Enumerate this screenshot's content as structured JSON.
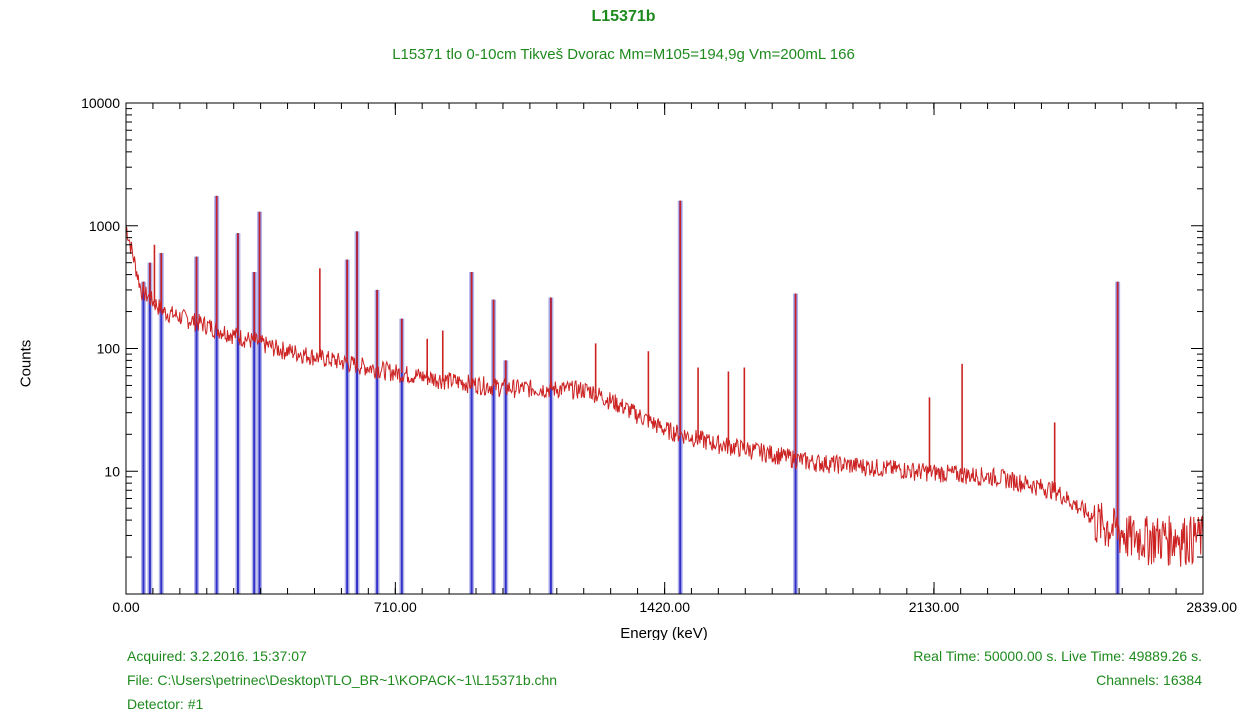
{
  "chart_data": {
    "type": "line",
    "title": "L15371b",
    "subtitle": "L15371 tlo 0-10cm Tikveš Dvorac  Mm=M105=194,9g Vm=200mL 166",
    "xlabel": "Energy (keV)",
    "ylabel": "Counts",
    "xlim": [
      0,
      2839
    ],
    "ylim": [
      1,
      10000
    ],
    "yscale": "log",
    "x_ticks": [
      "0.00",
      "710.00",
      "1420.00",
      "2130.00",
      "2839.00"
    ],
    "x_tick_values": [
      0,
      710,
      1420,
      2130,
      2839
    ],
    "y_ticks": [
      "10000",
      "1000",
      "100",
      "10"
    ],
    "y_tick_values": [
      10000,
      1000,
      100,
      10
    ],
    "spectrum_color": "#cc2222",
    "peak_color": "#3232c8",
    "continuum": [
      [
        0,
        1000
      ],
      [
        40,
        300
      ],
      [
        100,
        200
      ],
      [
        200,
        160
      ],
      [
        300,
        125
      ],
      [
        400,
        100
      ],
      [
        550,
        80
      ],
      [
        700,
        65
      ],
      [
        850,
        55
      ],
      [
        1000,
        48
      ],
      [
        1150,
        47
      ],
      [
        1220,
        46
      ],
      [
        1300,
        35
      ],
      [
        1420,
        22
      ],
      [
        1550,
        17
      ],
      [
        1700,
        14
      ],
      [
        1800,
        12
      ],
      [
        1950,
        11
      ],
      [
        2100,
        10
      ],
      [
        2300,
        9
      ],
      [
        2450,
        7
      ],
      [
        2560,
        4
      ],
      [
        2650,
        3
      ],
      [
        2839,
        3
      ]
    ],
    "peaks": [
      {
        "x": 46,
        "y": 350
      },
      {
        "x": 63,
        "y": 500
      },
      {
        "x": 93,
        "y": 600
      },
      {
        "x": 186,
        "y": 560
      },
      {
        "x": 239,
        "y": 1750
      },
      {
        "x": 295,
        "y": 870
      },
      {
        "x": 338,
        "y": 420
      },
      {
        "x": 352,
        "y": 1300
      },
      {
        "x": 583,
        "y": 530
      },
      {
        "x": 609,
        "y": 900
      },
      {
        "x": 662,
        "y": 300
      },
      {
        "x": 727,
        "y": 175
      },
      {
        "x": 911,
        "y": 420
      },
      {
        "x": 969,
        "y": 250
      },
      {
        "x": 1001,
        "y": 80
      },
      {
        "x": 1120,
        "y": 260
      },
      {
        "x": 1461,
        "y": 1600
      },
      {
        "x": 1765,
        "y": 280
      },
      {
        "x": 2614,
        "y": 350
      }
    ],
    "minor_peaks": [
      {
        "x": 75,
        "y": 700
      },
      {
        "x": 511,
        "y": 450
      },
      {
        "x": 794,
        "y": 120
      },
      {
        "x": 835,
        "y": 140
      },
      {
        "x": 1238,
        "y": 110
      },
      {
        "x": 1377,
        "y": 95
      },
      {
        "x": 1508,
        "y": 70
      },
      {
        "x": 1588,
        "y": 65
      },
      {
        "x": 1630,
        "y": 70
      },
      {
        "x": 2118,
        "y": 40
      },
      {
        "x": 2204,
        "y": 75
      },
      {
        "x": 2448,
        "y": 25
      }
    ]
  },
  "footer": {
    "acquired": "Acquired:  3.2.2016. 15:37:07",
    "file": "File:  C:\\Users\\petrinec\\Desktop\\TLO_BR~1\\KOPACK~1\\L15371b.chn",
    "detector": "Detector:  #1",
    "times": "Real Time: 50000.00 s.  Live Time: 49889.26 s.",
    "channels": "Channels:  16384"
  }
}
